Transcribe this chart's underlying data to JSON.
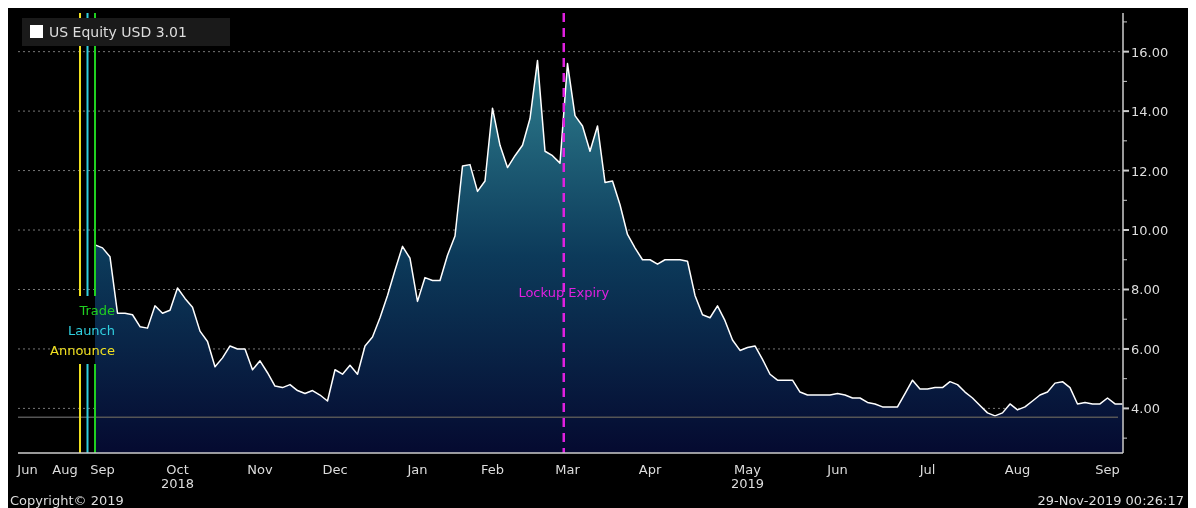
{
  "chart_data": {
    "type": "area",
    "categories": [
      null,
      "Jun",
      null,
      null,
      null,
      null,
      "Aug",
      null,
      null,
      null,
      null,
      "Sep",
      null,
      null,
      null,
      null,
      null,
      null,
      null,
      null,
      null,
      "Oct",
      null,
      null,
      null,
      null,
      null,
      null,
      null,
      null,
      null,
      null,
      "Nov",
      null,
      null,
      null,
      null,
      null,
      null,
      null,
      null,
      null,
      "Dec",
      null,
      null,
      null,
      null,
      null,
      null,
      null,
      null,
      null,
      null,
      "Jan",
      null,
      null,
      null,
      null,
      null,
      null,
      null,
      null,
      null,
      "Feb",
      null,
      null,
      null,
      null,
      null,
      null,
      null,
      null,
      null,
      "Mar",
      null,
      null,
      null,
      null,
      null,
      null,
      null,
      null,
      null,
      null,
      "Apr",
      null,
      null,
      null,
      null,
      null,
      null,
      null,
      null,
      null,
      null,
      null,
      null,
      "May",
      null,
      null,
      null,
      null,
      null,
      null,
      null,
      null,
      null,
      null,
      null,
      "Jun",
      null,
      null,
      null,
      null,
      null,
      null,
      null,
      null,
      null,
      null,
      null,
      "Jul",
      null,
      null,
      null,
      null,
      null,
      null,
      null,
      null,
      null,
      null,
      null,
      "Aug",
      null,
      null,
      null,
      null,
      null,
      null,
      null,
      null,
      null,
      null,
      null,
      "Sep",
      null,
      null
    ],
    "series": [
      {
        "name": "US Equity USD 3.01",
        "color": "#ffffff",
        "values": [
          null,
          null,
          null,
          null,
          null,
          null,
          null,
          null,
          null,
          null,
          9.5,
          9.4,
          9.1,
          7.2,
          7.2,
          7.15,
          6.75,
          6.7,
          7.45,
          7.2,
          7.3,
          8.05,
          7.7,
          7.4,
          6.6,
          6.25,
          5.4,
          5.7,
          6.1,
          6.0,
          6.0,
          5.3,
          5.6,
          5.2,
          4.75,
          4.7,
          4.8,
          4.6,
          4.5,
          4.6,
          4.45,
          4.25,
          5.3,
          5.15,
          5.45,
          5.15,
          6.1,
          6.4,
          7.05,
          7.8,
          8.65,
          9.45,
          9.05,
          7.6,
          8.4,
          8.3,
          8.3,
          9.15,
          9.8,
          12.15,
          12.2,
          11.3,
          11.65,
          14.1,
          12.85,
          12.1,
          12.5,
          12.85,
          13.75,
          15.7,
          12.65,
          12.5,
          12.25,
          15.6,
          13.85,
          13.5,
          12.65,
          13.5,
          11.6,
          11.65,
          10.85,
          9.85,
          9.4,
          9.0,
          9.0,
          8.85,
          9.0,
          9.0,
          9.0,
          8.95,
          7.8,
          7.15,
          7.05,
          7.45,
          6.95,
          6.3,
          5.95,
          6.05,
          6.1,
          5.65,
          5.15,
          4.95,
          4.95,
          4.95,
          4.55,
          4.45,
          4.45,
          4.45,
          4.45,
          4.5,
          4.45,
          4.35,
          4.35,
          4.2,
          4.15,
          4.05,
          4.05,
          4.05,
          4.5,
          4.95,
          4.65,
          4.65,
          4.7,
          4.7,
          4.9,
          4.8,
          4.55,
          4.35,
          4.1,
          3.85,
          3.75,
          3.85,
          4.15,
          3.95,
          4.05,
          4.25,
          4.45,
          4.55,
          4.85,
          4.9,
          4.7,
          4.15,
          4.2,
          4.15,
          4.15,
          4.35,
          4.15,
          4.15
        ]
      }
    ],
    "ylim": [
      2.5,
      17.3
    ],
    "yticks": [
      {
        "value": 3,
        "label": null
      },
      {
        "value": 4,
        "label": "4.00"
      },
      {
        "value": 5,
        "label": null
      },
      {
        "value": 6,
        "label": "6.00"
      },
      {
        "value": 7,
        "label": null
      },
      {
        "value": 8,
        "label": "8.00"
      },
      {
        "value": 9,
        "label": null
      },
      {
        "value": 10,
        "label": "10.00"
      },
      {
        "value": 11,
        "label": null
      },
      {
        "value": 12,
        "label": "12.00"
      },
      {
        "value": 13,
        "label": null
      },
      {
        "value": 14,
        "label": "14.00"
      },
      {
        "value": 15,
        "label": null
      },
      {
        "value": 16,
        "label": "16.00"
      },
      {
        "value": 17,
        "label": null
      }
    ],
    "grid": "y",
    "legend": "top left",
    "ref_lines": [
      {
        "axis": "y",
        "value": 3.7,
        "color": "#555555"
      }
    ],
    "annotations": [
      "2018",
      "2019",
      "Copyright© 2019",
      "29-Nov-2019 00:26:17",
      "Announce",
      "Launch",
      "Trade",
      "Lockup Expiry"
    ]
  }
}
